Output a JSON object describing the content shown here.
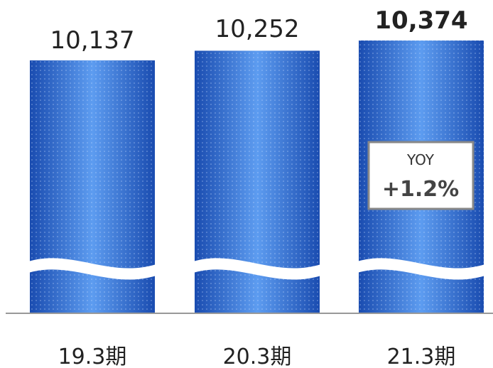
{
  "chart_data": {
    "type": "bar",
    "categories": [
      "19.3期",
      "20.3期",
      "21.3期"
    ],
    "values": [
      10137,
      10252,
      10374
    ],
    "value_labels": [
      "10,137",
      "10,252",
      "10,374"
    ],
    "highlight_index": 2,
    "axis_break": true,
    "annotation": {
      "label": "YOY",
      "value": "+1.2%"
    },
    "colors": {
      "bar": "#2f6fd6",
      "bar_dark": "#1b4fb5",
      "bar_light": "#5b98ee",
      "axis": "#999999",
      "box_border": "#888888"
    }
  }
}
